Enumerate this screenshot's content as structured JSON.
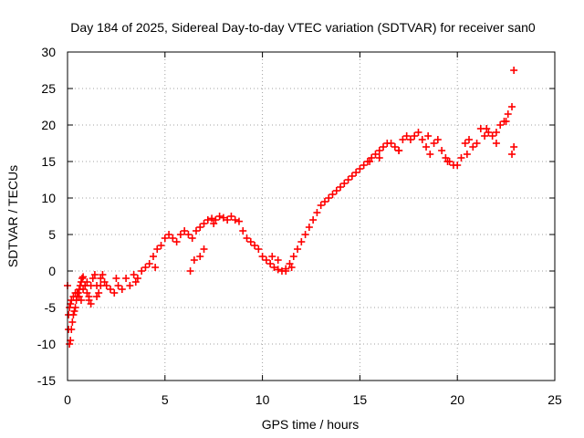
{
  "chart_data": {
    "type": "scatter",
    "title": "Day 184 of 2025, Sidereal Day-to-day VTEC variation (SDTVAR) for receiver san0",
    "xlabel": "GPS time / hours",
    "ylabel": "SDTVAR / TECUs",
    "xlim": [
      0,
      25
    ],
    "ylim": [
      -15,
      30
    ],
    "xticks": [
      0,
      5,
      10,
      15,
      20,
      25
    ],
    "yticks": [
      -15,
      -10,
      -5,
      0,
      5,
      10,
      15,
      20,
      25,
      30
    ],
    "xtick_labels": [
      "0",
      "5",
      "10",
      "15",
      "20",
      "25"
    ],
    "ytick_labels": [
      "-15",
      "-10",
      "-5",
      "0",
      "5",
      "10",
      "15",
      "20",
      "25",
      "30"
    ],
    "grid": true,
    "marker": "+",
    "color": "#ff0000",
    "series": [
      {
        "name": "SDTVAR",
        "x": [
          0.0,
          0.05,
          0.1,
          0.15,
          0.2,
          0.25,
          0.3,
          0.35,
          0.4,
          0.45,
          0.5,
          0.55,
          0.6,
          0.65,
          0.7,
          0.75,
          0.8,
          0.9,
          1.0,
          1.1,
          1.2,
          1.3,
          1.4,
          1.5,
          1.6,
          1.7,
          1.8,
          1.9,
          2.0,
          2.2,
          2.4,
          2.6,
          2.8,
          3.0,
          3.2,
          3.4,
          3.6,
          3.8,
          4.0,
          4.2,
          4.4,
          4.6,
          4.8,
          5.0,
          5.2,
          5.4,
          5.6,
          5.8,
          6.0,
          6.2,
          6.4,
          6.6,
          6.8,
          7.0,
          7.2,
          7.4,
          7.6,
          7.8,
          8.0,
          8.2,
          8.4,
          8.6,
          8.8,
          9.0,
          9.2,
          9.4,
          9.6,
          9.8,
          10.0,
          10.2,
          10.4,
          10.6,
          10.8,
          11.0,
          11.2,
          11.4,
          11.6,
          11.8,
          12.0,
          12.2,
          12.4,
          12.6,
          12.8,
          13.0,
          13.2,
          13.4,
          13.6,
          13.8,
          14.0,
          14.2,
          14.4,
          14.6,
          14.8,
          15.0,
          15.2,
          15.4,
          15.6,
          15.8,
          16.0,
          16.2,
          16.4,
          16.6,
          16.8,
          17.0,
          17.2,
          17.4,
          17.6,
          17.8,
          18.0,
          18.2,
          18.4,
          18.6,
          18.8,
          19.0,
          19.2,
          19.4,
          19.6,
          19.8,
          20.0,
          20.2,
          20.4,
          20.6,
          20.8,
          21.0,
          21.2,
          21.4,
          21.6,
          21.8,
          22.0,
          22.2,
          22.4,
          22.6,
          22.8,
          22.9,
          22.9,
          0.05,
          0.1,
          0.15,
          0.2,
          0.3,
          0.4,
          0.5,
          0.6,
          0.7,
          0.8,
          0.9,
          1.0,
          1.1,
          1.2,
          1.5,
          1.7,
          2.5,
          3.5,
          4.5,
          6.3,
          6.5,
          6.8,
          7.0,
          7.5,
          10.5,
          10.8,
          11.2,
          11.5,
          15.5,
          16.0,
          17.0,
          18.5,
          19.5,
          20.5,
          21.5,
          22.0,
          22.5,
          22.8
        ],
        "y": [
          -2.0,
          -8.0,
          -10.0,
          -9.5,
          -8.0,
          -7.0,
          -6.0,
          -5.5,
          -5.0,
          -4.0,
          -3.5,
          -3.0,
          -2.5,
          -2.0,
          -1.5,
          -1.0,
          -0.8,
          -2.0,
          -3.0,
          -4.0,
          -2.0,
          -1.0,
          -0.5,
          -2.0,
          -3.0,
          -1.0,
          -0.5,
          -1.5,
          -2.0,
          -2.5,
          -3.0,
          -2.0,
          -2.5,
          -1.0,
          -2.0,
          -0.5,
          -1.0,
          0.0,
          0.5,
          1.0,
          2.0,
          3.0,
          3.5,
          4.5,
          5.0,
          4.5,
          4.0,
          5.0,
          5.5,
          5.0,
          4.5,
          5.5,
          6.0,
          6.5,
          7.0,
          7.2,
          7.0,
          7.5,
          7.3,
          7.0,
          7.5,
          7.0,
          6.8,
          5.5,
          4.5,
          4.0,
          3.5,
          3.0,
          2.0,
          1.5,
          1.0,
          0.5,
          0.2,
          0.0,
          0.3,
          1.0,
          2.0,
          3.0,
          4.0,
          5.0,
          6.0,
          7.0,
          8.0,
          9.0,
          9.5,
          10.0,
          10.5,
          11.0,
          11.5,
          12.0,
          12.5,
          13.0,
          13.5,
          14.0,
          14.5,
          15.0,
          15.5,
          16.0,
          16.5,
          17.0,
          17.5,
          17.5,
          17.0,
          16.5,
          18.0,
          18.5,
          18.0,
          18.5,
          19.0,
          18.0,
          17.0,
          16.0,
          17.5,
          18.0,
          16.5,
          15.5,
          15.0,
          14.5,
          14.5,
          15.5,
          17.5,
          18.0,
          17.0,
          17.5,
          19.5,
          18.5,
          19.0,
          18.5,
          19.0,
          20.0,
          20.5,
          21.5,
          22.5,
          27.5,
          17.0,
          -6.0,
          -5.0,
          -4.5,
          -4.0,
          -3.5,
          -3.0,
          -3.0,
          -3.5,
          -4.0,
          -2.5,
          -2.0,
          -1.5,
          -3.5,
          -4.5,
          -3.5,
          -2.0,
          -1.0,
          -1.5,
          0.5,
          0.0,
          1.5,
          2.0,
          3.0,
          6.5,
          2.0,
          1.5,
          0.0,
          0.5,
          15.0,
          15.5,
          16.5,
          18.5,
          15.0,
          16.0,
          19.5,
          17.5,
          20.5,
          16.0
        ]
      }
    ]
  }
}
